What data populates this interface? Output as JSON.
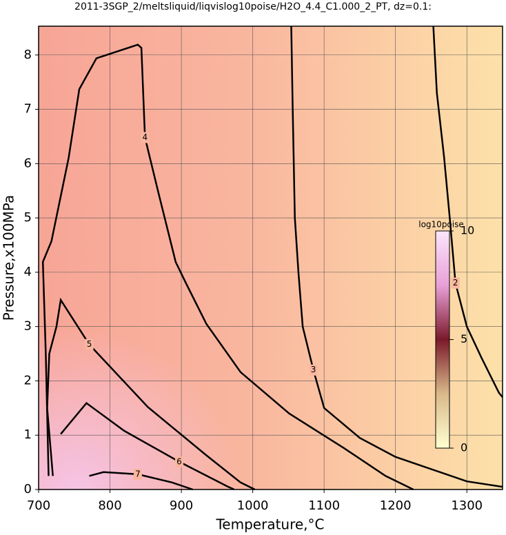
{
  "chart_data": {
    "type": "contour",
    "title": "2011-3SGP_2/meltsliquid/liqvislog10poise/H2O_4.4_C1.000_2_PT, dz=0.1:",
    "x_label": "Temperature,°C",
    "y_label": "Pressure,x100MPa",
    "xlim": [
      700,
      1350
    ],
    "ylim": [
      0,
      8.53
    ],
    "xticks": [
      700,
      800,
      900,
      1000,
      1100,
      1200,
      1300
    ],
    "yticks": [
      0,
      1,
      2,
      3,
      4,
      5,
      6,
      7,
      8
    ],
    "grid": true,
    "contours": [
      {
        "level": 2,
        "x": [
          1253,
          1258,
          1268,
          1276,
          1284,
          1300,
          1321,
          1345,
          1350
        ],
        "y": [
          8.53,
          7.3,
          6.13,
          5.0,
          3.8,
          3.0,
          2.41,
          1.78,
          1.7
        ]
      },
      {
        "level": 3,
        "x": [
          1054,
          1056,
          1059,
          1064,
          1070,
          1085,
          1100,
          1150,
          1200,
          1300,
          1350
        ],
        "y": [
          8.53,
          7.0,
          5.0,
          4.0,
          3.0,
          2.2,
          1.5,
          0.95,
          0.6,
          0.15,
          0.05
        ]
      },
      {
        "level": 4,
        "x": [
          714,
          710,
          706,
          718,
          742,
          757,
          781,
          839,
          844,
          849,
          868,
          892,
          906,
          935,
          983,
          1051,
          1128,
          1186,
          1225
        ],
        "y": [
          0.25,
          2.5,
          4.19,
          4.57,
          6.1,
          7.37,
          7.94,
          8.19,
          8.13,
          6.48,
          5.46,
          4.19,
          3.81,
          3.05,
          2.16,
          1.4,
          0.76,
          0.25,
          0
        ]
      },
      {
        "level": 5,
        "x": [
          720,
          712,
          715,
          725,
          731,
          771,
          853,
          935,
          983,
          1003
        ],
        "y": [
          0.25,
          1.5,
          2.5,
          3.0,
          3.49,
          2.67,
          1.52,
          0.63,
          0.13,
          0
        ]
      },
      {
        "level": 6,
        "x": [
          731,
          767,
          820,
          897,
          964,
          974
        ],
        "y": [
          1.02,
          1.59,
          1.08,
          0.51,
          0.06,
          0
        ]
      },
      {
        "level": 7,
        "x": [
          771,
          791,
          839,
          887,
          916
        ],
        "y": [
          0.25,
          0.32,
          0.28,
          0.13,
          0
        ]
      }
    ],
    "colorbar": {
      "label": "log10poise",
      "lim": [
        0,
        10
      ],
      "ticks": [
        0,
        5,
        10
      ]
    }
  }
}
